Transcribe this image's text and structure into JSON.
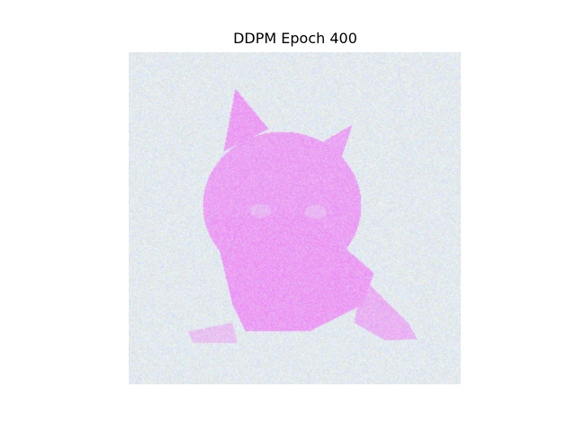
{
  "figure": {
    "title": "DDPM Epoch 400"
  },
  "image": {
    "subject_icon": "cat-silhouette",
    "colors": {
      "background_noise": [
        "#e8f4ee",
        "#f7f2f6",
        "#dfeee8",
        "#ececf5",
        "#f6f8f2"
      ],
      "subject_tint": "#f07af5",
      "subject_secondary": "#d98ff5"
    }
  }
}
